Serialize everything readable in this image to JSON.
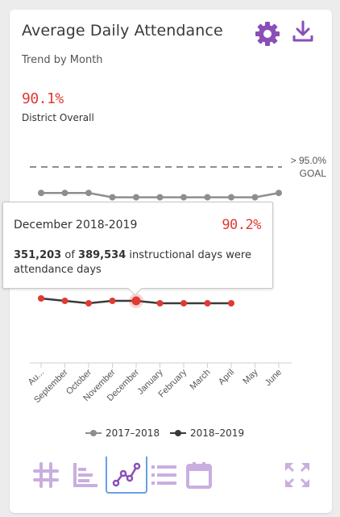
{
  "header": {
    "title": "Average Daily Attendance",
    "subtitle": "Trend by Month",
    "settings_icon": "gear-icon",
    "download_icon": "download-icon"
  },
  "summary": {
    "value": "90.1%",
    "label": "District Overall"
  },
  "goal": {
    "label_line1": "> 95.0%",
    "label_line2": "GOAL",
    "value": 95.0
  },
  "tooltip": {
    "title": "December 2018-2019",
    "value": "90.2%",
    "count_attended": "351,203",
    "of_text": "of",
    "count_total": "389,534",
    "description": "instructional days were attendance days"
  },
  "toolbar": [
    {
      "name": "number-view-button",
      "icon": "hash-icon",
      "active": false
    },
    {
      "name": "bar-view-button",
      "icon": "bar-chart-icon",
      "active": false
    },
    {
      "name": "line-view-button",
      "icon": "line-chart-icon",
      "active": true
    },
    {
      "name": "list-view-button",
      "icon": "list-icon",
      "active": false
    },
    {
      "name": "calendar-view-button",
      "icon": "calendar-icon",
      "active": false
    },
    {
      "name": "expand-button",
      "icon": "expand-icon",
      "active": false
    }
  ],
  "colors": {
    "accent_purple": "#8a4eb8",
    "light_purple": "#c9aee0",
    "red": "#e03a33",
    "gray_series": "#8e8e8e",
    "dark_series": "#3a3a3a",
    "active_blue": "#6aa0e4"
  },
  "chart_data": {
    "type": "line",
    "categories": [
      "Au...",
      "September",
      "October",
      "November",
      "December",
      "January",
      "February",
      "March",
      "April",
      "May",
      "June"
    ],
    "series": [
      {
        "name": "2017–2018",
        "color": "#8e8e8e",
        "values": [
          94.1,
          94.1,
          94.1,
          93.95,
          93.95,
          93.95,
          93.95,
          93.95,
          93.95,
          93.95,
          94.1
        ]
      },
      {
        "name": "2018–2019",
        "color": "#3a3a3a",
        "point_color": "#e03a33",
        "values": [
          90.35,
          90.2,
          90.05,
          90.2,
          90.2,
          90.05,
          90.05,
          90.05,
          90.05,
          null,
          null
        ]
      }
    ],
    "highlight": {
      "series": 1,
      "index": 4
    },
    "goal_line": 95.0
  }
}
